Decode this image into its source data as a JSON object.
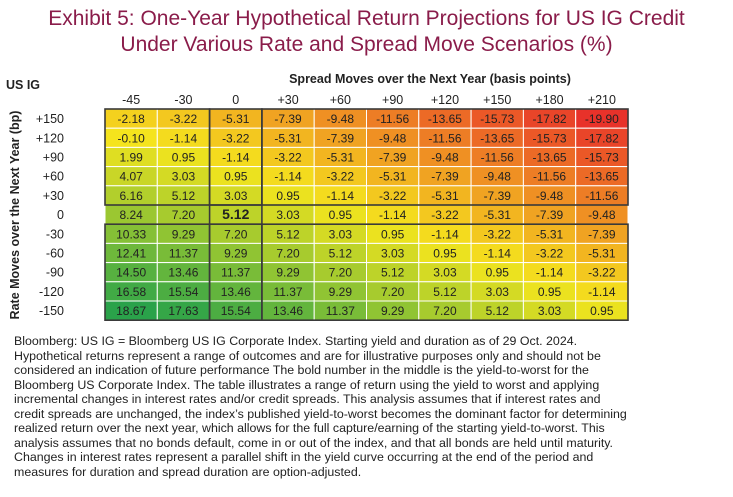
{
  "title_line1": "Exhibit 5: One-Year Hypothetical Return Projections for US IG Credit",
  "title_line2": "Under Various Rate and Spread Move Scenarios (%)",
  "chart_data": {
    "type": "heatmap",
    "corner_label": "US IG",
    "xlabel": "Spread Moves over the Next Year (basis points)",
    "ylabel": "Rate Moves over the Next Year (bp)",
    "x_categories": [
      "-45",
      "-30",
      "0",
      "+30",
      "+60",
      "+90",
      "+120",
      "+150",
      "+180",
      "+210"
    ],
    "y_categories": [
      "+150",
      "+120",
      "+90",
      "+60",
      "+30",
      "0",
      "-30",
      "-60",
      "-90",
      "-120",
      "-150"
    ],
    "values": [
      [
        "-2.18",
        "-3.22",
        "-5.31",
        "-7.39",
        "-9.48",
        "-11.56",
        "-13.65",
        "-15.73",
        "-17.82",
        "-19.90"
      ],
      [
        "-0.10",
        "-1.14",
        "-3.22",
        "-5.31",
        "-7.39",
        "-9.48",
        "-11.56",
        "-13.65",
        "-15.73",
        "-17.82"
      ],
      [
        "1.99",
        "0.95",
        "-1.14",
        "-3.22",
        "-5.31",
        "-7.39",
        "-9.48",
        "-11.56",
        "-13.65",
        "-15.73"
      ],
      [
        "4.07",
        "3.03",
        "0.95",
        "-1.14",
        "-3.22",
        "-5.31",
        "-7.39",
        "-9.48",
        "-11.56",
        "-13.65"
      ],
      [
        "6.16",
        "5.12",
        "3.03",
        "0.95",
        "-1.14",
        "-3.22",
        "-5.31",
        "-7.39",
        "-9.48",
        "-11.56"
      ],
      [
        "8.24",
        "7.20",
        "5.12",
        "3.03",
        "0.95",
        "-1.14",
        "-3.22",
        "-5.31",
        "-7.39",
        "-9.48"
      ],
      [
        "10.33",
        "9.29",
        "7.20",
        "5.12",
        "3.03",
        "0.95",
        "-1.14",
        "-3.22",
        "-5.31",
        "-7.39"
      ],
      [
        "12.41",
        "11.37",
        "9.29",
        "7.20",
        "5.12",
        "3.03",
        "0.95",
        "-1.14",
        "-3.22",
        "-5.31"
      ],
      [
        "14.50",
        "13.46",
        "11.37",
        "9.29",
        "7.20",
        "5.12",
        "3.03",
        "0.95",
        "-1.14",
        "-3.22"
      ],
      [
        "16.58",
        "15.54",
        "13.46",
        "11.37",
        "9.29",
        "7.20",
        "5.12",
        "3.03",
        "0.95",
        "-1.14"
      ],
      [
        "18.67",
        "17.63",
        "15.54",
        "13.46",
        "11.37",
        "9.29",
        "7.20",
        "5.12",
        "3.03",
        "0.95"
      ]
    ],
    "highlight": {
      "row": "0",
      "column": "0",
      "value": "5.12"
    },
    "color_scale": {
      "min": -19.9,
      "max": 18.67,
      "low_color": "#e8322a",
      "mid_color": "#f5e51d",
      "high_color": "#2aa24a"
    },
    "grid_color": "#ffffff",
    "border_color": "#3a3a3a"
  },
  "footnote": [
    "Bloomberg: US IG = Bloomberg US IG Corporate Index. Starting yield and duration as of 29 Oct. 2024.",
    "Hypothetical returns represent a range of outcomes and are for illustrative purposes only and should not be",
    "considered an indication of future performance The bold number in the middle is the yield-to-worst for the",
    "Bloomberg US Corporate Index. The table illustrates a range of return using the yield to worst and applying",
    " incremental changes in interest rates and/or credit spreads. This analysis assumes that if interest rates and",
    "credit spreads are unchanged, the index’s published yield-to-worst becomes the dominant factor for determining",
    "realized return over the next year, which allows for the full capture/earning of the starting yield-to-worst. This",
    "analysis assumes that no bonds default, come in or out of the index, and that all bonds are held until maturity.",
    "Changes in interest rates represent a parallel shift in the yield curve occurring at the end of the period and",
    "measures for duration and spread duration are option-adjusted."
  ]
}
